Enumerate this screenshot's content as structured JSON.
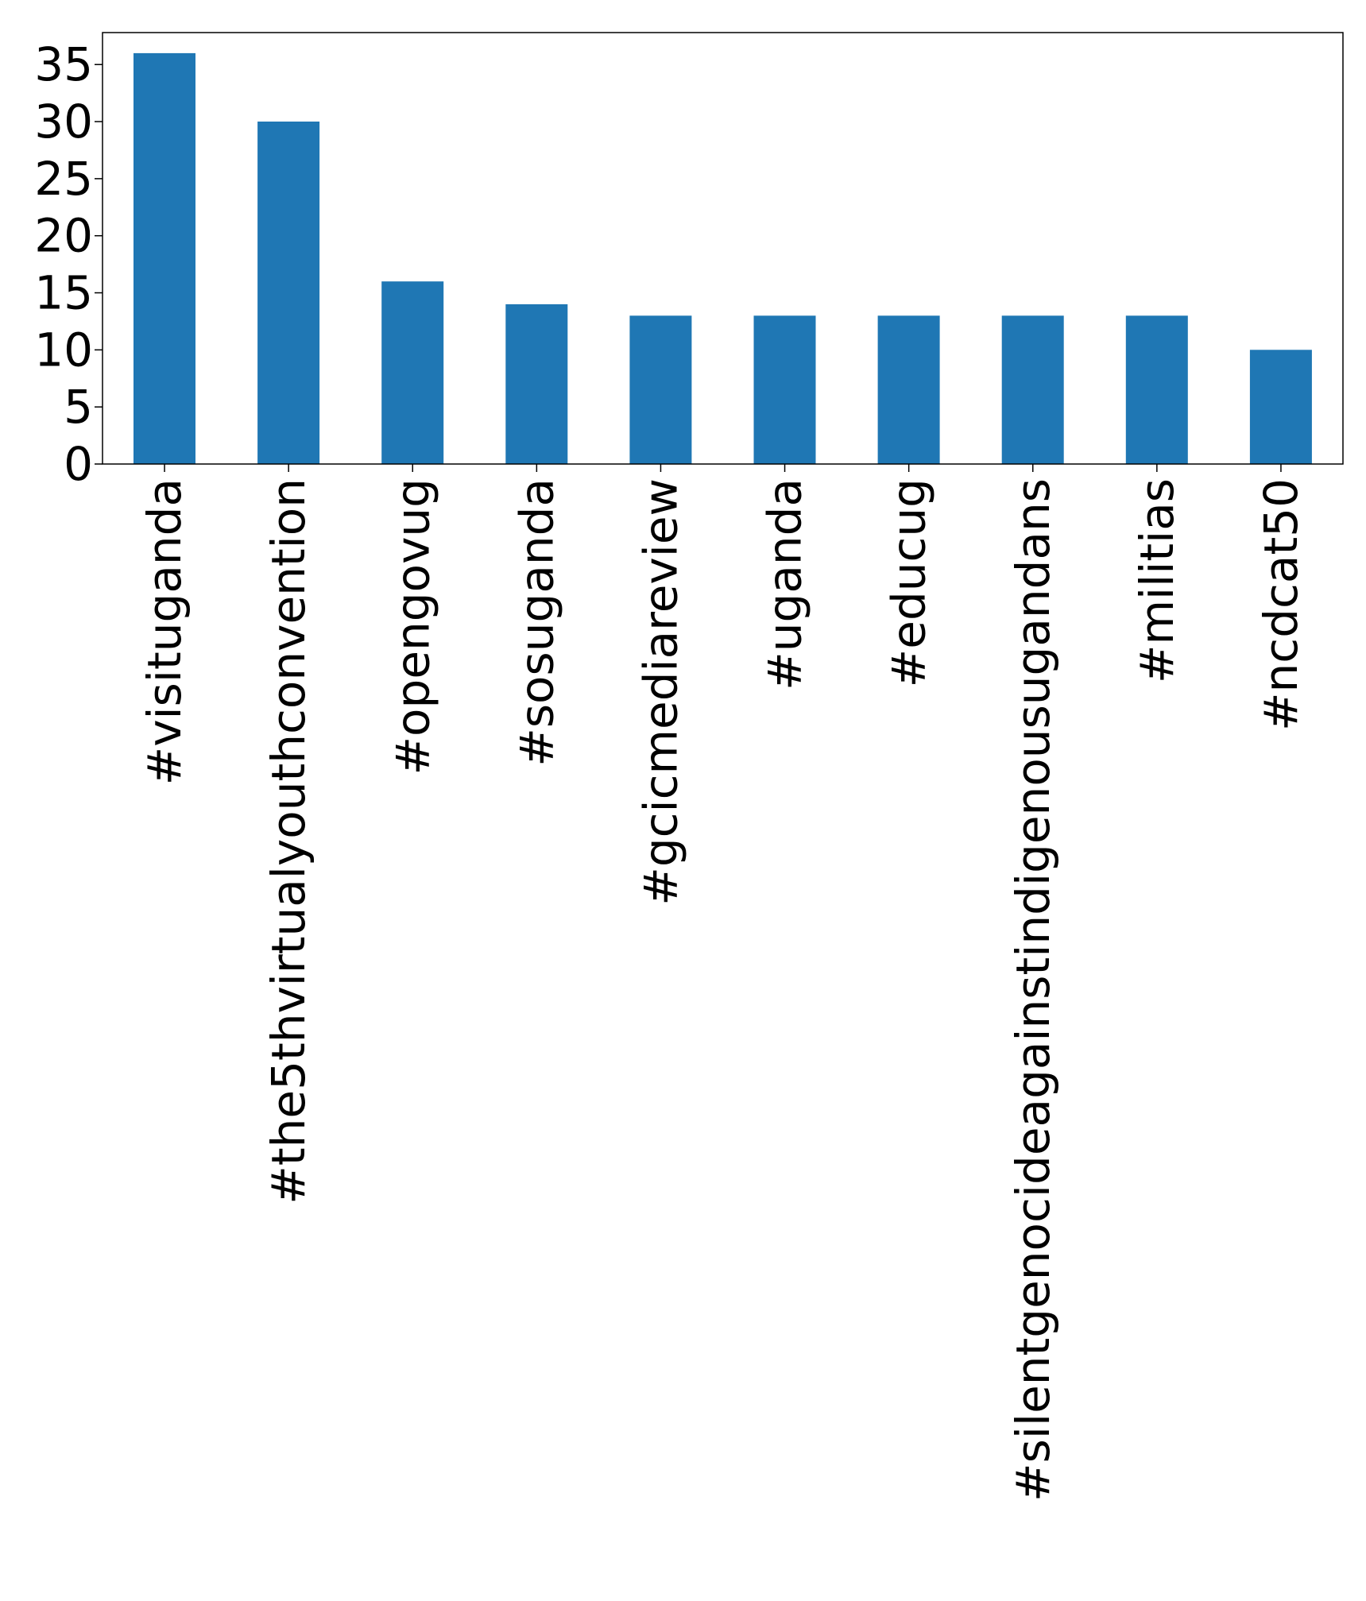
{
  "chart_data": {
    "type": "bar",
    "categories": [
      "#visituganda",
      "#the5thvirtualyouthconvention",
      "#opengovug",
      "#sosuganda",
      "#gcicmediareview",
      "#uganda",
      "#educug",
      "#silentgenocideagainstindigenousugandans",
      "#militias",
      "#ncdcat50"
    ],
    "values": [
      36,
      30,
      16,
      14,
      13,
      13,
      13,
      13,
      13,
      10
    ],
    "ylim": [
      0,
      37.8
    ],
    "yticks": [
      "0",
      "5",
      "10",
      "15",
      "20",
      "25",
      "30",
      "35"
    ],
    "title": "",
    "xlabel": "",
    "ylabel": "",
    "grid": false,
    "bar_color": "#1f77b4"
  }
}
